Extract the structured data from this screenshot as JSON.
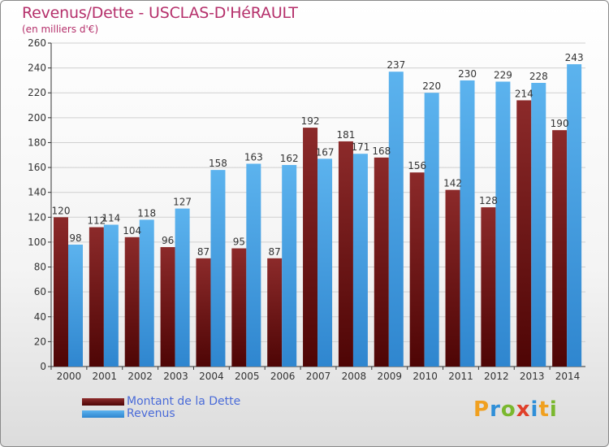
{
  "title": "Revenus/Dette - USCLAS-D'HéRAULT",
  "subtitle": "(en milliers d'€)",
  "chart_data": {
    "type": "bar",
    "categories": [
      "2000",
      "2001",
      "2002",
      "2003",
      "2004",
      "2005",
      "2006",
      "2007",
      "2008",
      "2009",
      "2010",
      "2011",
      "2012",
      "2013",
      "2014"
    ],
    "series": [
      {
        "name": "Montant de la Dette",
        "color": "#7b1a1a",
        "values": [
          120,
          112,
          104,
          96,
          87,
          95,
          87,
          192,
          181,
          168,
          156,
          142,
          128,
          214,
          190
        ]
      },
      {
        "name": "Revenus",
        "color": "#4aa3e3",
        "values": [
          98,
          114,
          118,
          127,
          158,
          163,
          162,
          167,
          171,
          237,
          220,
          230,
          229,
          228,
          243
        ]
      }
    ],
    "ylim": [
      0,
      260
    ],
    "yticks": [
      0,
      20,
      40,
      60,
      80,
      100,
      120,
      140,
      160,
      180,
      200,
      220,
      240,
      260
    ],
    "grid": true,
    "legend_position": "bottom-left"
  },
  "legend": [
    {
      "label": "Montant de la Dette",
      "color": "#7b1a1a"
    },
    {
      "label": "Revenus",
      "color": "#4aa3e3"
    }
  ],
  "logo": {
    "letters": [
      "P",
      "r",
      "o",
      "x",
      "i",
      "t",
      "i"
    ],
    "colors": [
      "#f0a020",
      "#2f8fd8",
      "#7ab82e",
      "#e0402a",
      "#2f8fd8",
      "#f0a020",
      "#7ab82e"
    ]
  }
}
